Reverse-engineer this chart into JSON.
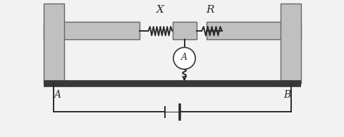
{
  "bg_color": "#f2f2f2",
  "wire_color": "#2a2a2a",
  "box_color": "#c0c0c0",
  "box_edge": "#666666",
  "galv_color": "#ffffff",
  "galv_edge": "#333333",
  "label_X": "X",
  "label_R": "R",
  "label_A_node": "A",
  "label_B_node": "B",
  "label_ammeter": "A",
  "lw_wire": 1.4,
  "lw_thick": 5.0,
  "fig_width": 4.89,
  "fig_height": 1.95,
  "dpi": 100
}
